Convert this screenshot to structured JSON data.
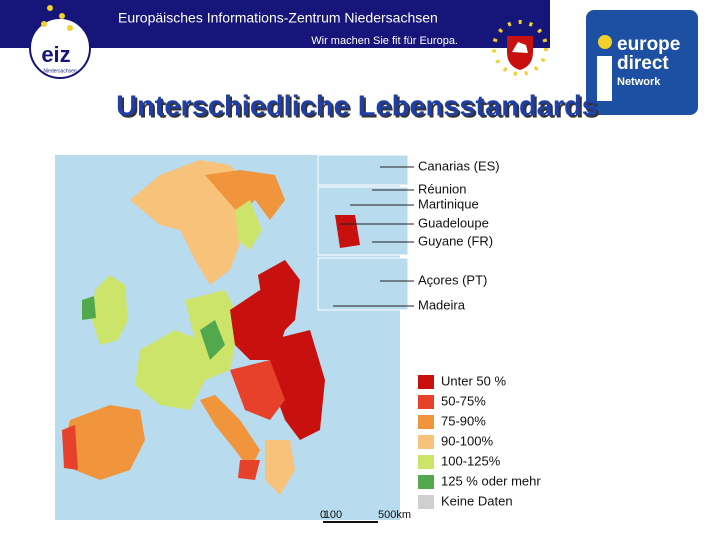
{
  "header": {
    "line1": "Europäisches Informations-Zentrum Niedersachsen",
    "line2": "Wir machen Sie fit für Europa.",
    "logo": "eiz",
    "logo_sub": "Niedersachsen"
  },
  "badge": {
    "line1": "europe",
    "line2": "direct",
    "line3": "Network"
  },
  "title": "Unterschiedliche Lebensstandards",
  "map": {
    "insets": [
      "Canarias (ES)",
      "Réunion",
      "Martinique",
      "Guadeloupe",
      "Guyane (FR)",
      "Açores (PT)",
      "Madeira"
    ],
    "legend": [
      {
        "label": "Unter 50 %",
        "color": "#c8100f"
      },
      {
        "label": "50-75%",
        "color": "#e8412b"
      },
      {
        "label": "75-90%",
        "color": "#f0953c"
      },
      {
        "label": "90-100%",
        "color": "#f7c27a"
      },
      {
        "label": "100-125%",
        "color": "#cde46a"
      },
      {
        "label": "125 % oder mehr",
        "color": "#52a84c"
      },
      {
        "label": "Keine Daten",
        "color": "#cfcfcf"
      }
    ],
    "scale": [
      "0",
      "100",
      "500km"
    ]
  }
}
